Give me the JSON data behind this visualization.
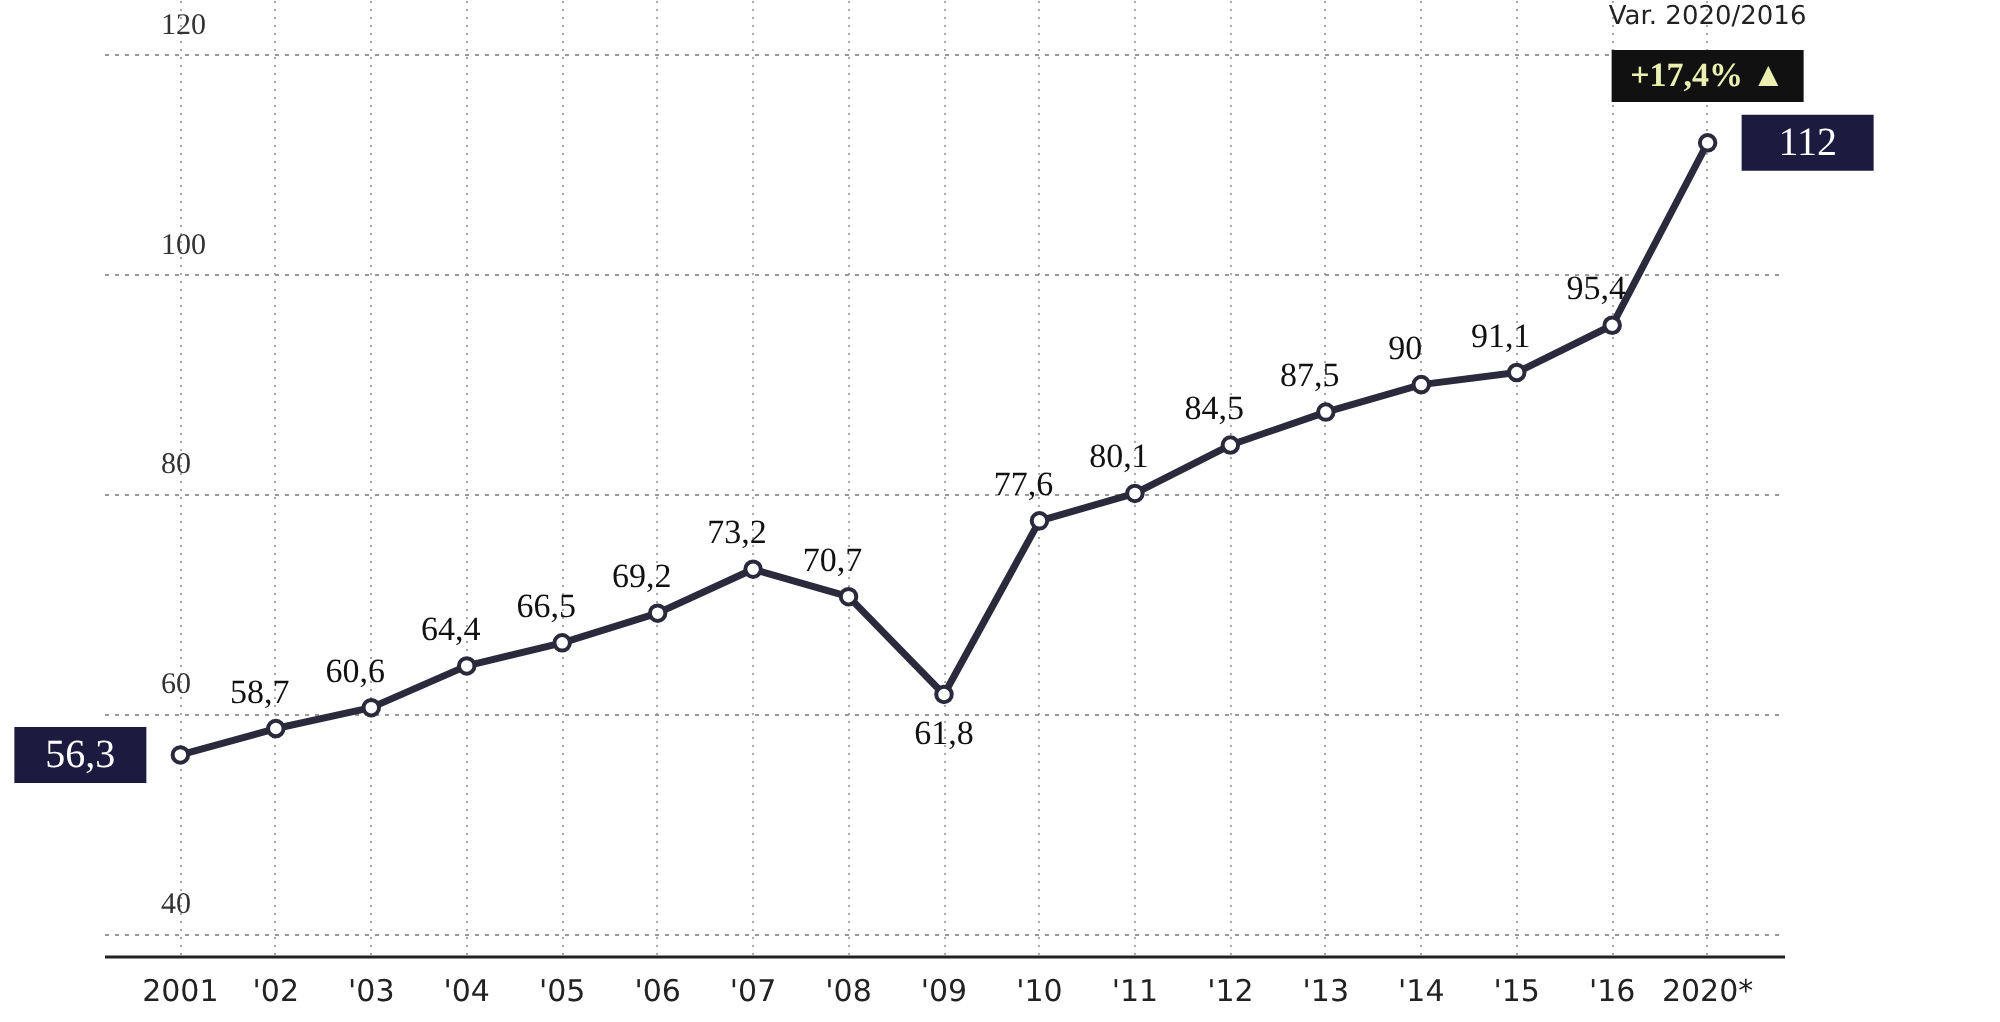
{
  "chart_data": {
    "type": "line",
    "categories": [
      "2001",
      "'02",
      "'03",
      "'04",
      "'05",
      "'06",
      "'07",
      "'08",
      "'09",
      "'10",
      "'11",
      "'12",
      "'13",
      "'14",
      "'15",
      "'16",
      "2020*"
    ],
    "series": [
      {
        "color": "#2a2a3c",
        "values": [
          56.3,
          58.7,
          60.6,
          64.4,
          66.5,
          69.2,
          73.2,
          70.7,
          61.8,
          77.6,
          80.1,
          84.5,
          87.5,
          90,
          91.1,
          95.4,
          112
        ],
        "value_labels": [
          "56,3",
          "58,7",
          "60,6",
          "64,4",
          "66,5",
          "69,2",
          "73,2",
          "70,7",
          "61,8",
          "77,6",
          "80,1",
          "84,5",
          "87,5",
          "90",
          "91,1",
          "95,4",
          "112"
        ]
      }
    ],
    "ylim": [
      38,
      125
    ],
    "yticks": [
      40,
      60,
      80,
      100,
      120
    ],
    "grid": true,
    "marker": "circle",
    "line_style": "solid",
    "annotations": [
      "Var. 2020/2016",
      "+17,4% ▲"
    ]
  }
}
